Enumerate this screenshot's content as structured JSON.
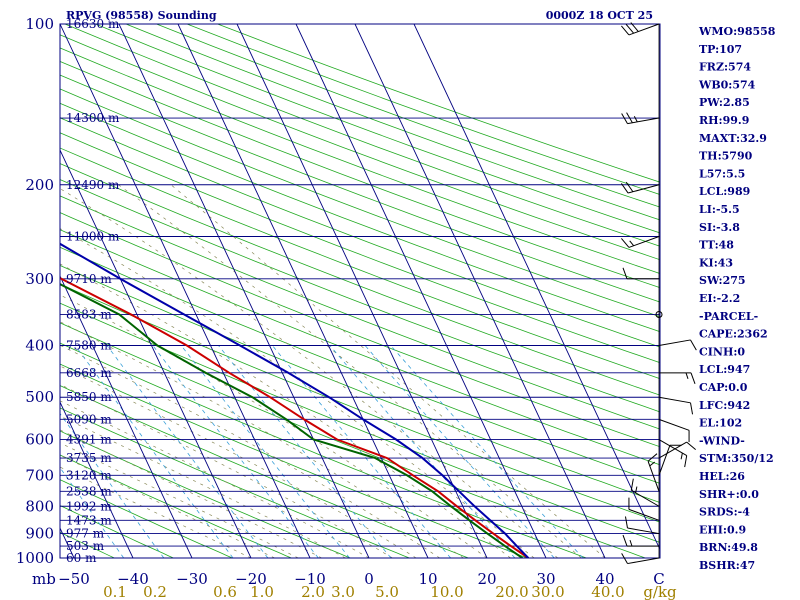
{
  "chart_data": {
    "type": "skew-t",
    "title": "RPVG (98558) Sounding",
    "time": "0000Z 18 OCT 25",
    "y_unit": "mb",
    "x_unit": "C",
    "mixing_unit": "g/kg",
    "pressure_ticks": [
      100,
      200,
      300,
      400,
      500,
      600,
      700,
      800,
      900,
      1000
    ],
    "temp_ticks": [
      -50,
      -40,
      -30,
      -20,
      -10,
      0,
      10,
      20,
      30,
      40
    ],
    "temp_tick_labels": [
      "−50",
      "−40",
      "−30",
      "−20",
      "−10",
      "0",
      "10",
      "20",
      "30",
      "40"
    ],
    "mixing_ratio_labels": [
      "0.1",
      "0.2",
      "0.6",
      "1.0",
      "2.0",
      "3.0",
      "5.0",
      "10.0",
      "20.0",
      "30.0",
      "40.0"
    ],
    "height_levels": [
      {
        "p": 100,
        "label": "16630 m"
      },
      {
        "p": 150,
        "label": "14300 m"
      },
      {
        "p": 200,
        "label": "12490 m"
      },
      {
        "p": 250,
        "label": "11000 m"
      },
      {
        "p": 300,
        "label": "9710 m"
      },
      {
        "p": 350,
        "label": "8583 m"
      },
      {
        "p": 400,
        "label": "7580 m"
      },
      {
        "p": 450,
        "label": "6668 m"
      },
      {
        "p": 500,
        "label": "5850 m"
      },
      {
        "p": 550,
        "label": "5090 m"
      },
      {
        "p": 600,
        "label": "4391 m"
      },
      {
        "p": 650,
        "label": "3735 m"
      },
      {
        "p": 700,
        "label": "3120 m"
      },
      {
        "p": 750,
        "label": "2538 m"
      },
      {
        "p": 800,
        "label": "1992 m"
      },
      {
        "p": 850,
        "label": "1473 m"
      },
      {
        "p": 900,
        "label": "977 m"
      },
      {
        "p": 950,
        "label": "503 m"
      },
      {
        "p": 1000,
        "label": "60 m"
      }
    ],
    "series": [
      {
        "name": "temperature",
        "color": "#cc0000",
        "points": [
          [
            100,
            -77
          ],
          [
            108,
            -82
          ],
          [
            150,
            -66
          ],
          [
            200,
            -52
          ],
          [
            250,
            -40
          ],
          [
            300,
            -30
          ],
          [
            350,
            -21
          ],
          [
            400,
            -14
          ],
          [
            450,
            -9
          ],
          [
            500,
            -4
          ],
          [
            550,
            0
          ],
          [
            600,
            4
          ],
          [
            650,
            11
          ],
          [
            700,
            14
          ],
          [
            750,
            17
          ],
          [
            800,
            19
          ],
          [
            850,
            21
          ],
          [
            900,
            23
          ],
          [
            950,
            25
          ],
          [
            1000,
            27
          ]
        ]
      },
      {
        "name": "dewpoint",
        "color": "#006400",
        "points": [
          [
            100,
            -77
          ],
          [
            108,
            -85
          ],
          [
            150,
            -70
          ],
          [
            200,
            -54
          ],
          [
            250,
            -41
          ],
          [
            300,
            -32
          ],
          [
            350,
            -23
          ],
          [
            400,
            -19
          ],
          [
            450,
            -13
          ],
          [
            500,
            -7
          ],
          [
            550,
            -3
          ],
          [
            600,
            0
          ],
          [
            650,
            9
          ],
          [
            700,
            13
          ],
          [
            750,
            16
          ],
          [
            800,
            18
          ],
          [
            850,
            20
          ],
          [
            900,
            22
          ],
          [
            950,
            24
          ],
          [
            1000,
            26
          ]
        ]
      },
      {
        "name": "parcel",
        "color": "#0000aa",
        "points": [
          [
            125,
            -58
          ],
          [
            150,
            -52
          ],
          [
            200,
            -40
          ],
          [
            250,
            -29
          ],
          [
            300,
            -20
          ],
          [
            350,
            -12
          ],
          [
            400,
            -5
          ],
          [
            450,
            1
          ],
          [
            500,
            6
          ],
          [
            550,
            10
          ],
          [
            600,
            14
          ],
          [
            650,
            17
          ],
          [
            700,
            19
          ],
          [
            800,
            22
          ],
          [
            900,
            25
          ],
          [
            950,
            26
          ],
          [
            1000,
            27
          ]
        ]
      }
    ],
    "indices": [
      "WMO:98558",
      "TP:107",
      "FRZ:574",
      "WB0:574",
      "PW:2.85",
      "RH:99.9",
      "MAXT:32.9",
      "TH:5790",
      "L57:5.5",
      "LCL:989",
      "LI:-5.5",
      "SI:-3.8",
      "TT:48",
      "KI:43",
      "SW:275",
      "EI:-2.2",
      "-PARCEL-",
      "CAPE:2362",
      "CINH:0",
      "LCL:947",
      "CAP:0.0",
      "LFC:942",
      "EL:102",
      "-WIND-",
      "STM:350/12",
      "HEL:26",
      "SHR+:0.0",
      "SRDS:-4",
      "EHI:0.9",
      "BRN:49.8",
      "BSHR:47"
    ],
    "wind_barbs": [
      {
        "p": 100,
        "dir": 250,
        "spd": 30
      },
      {
        "p": 150,
        "dir": 260,
        "spd": 25
      },
      {
        "p": 200,
        "dir": 255,
        "spd": 20
      },
      {
        "p": 250,
        "dir": 250,
        "spd": 15
      },
      {
        "p": 300,
        "dir": 270,
        "spd": 10
      },
      {
        "p": 350,
        "dir": 0,
        "spd": 0
      },
      {
        "p": 400,
        "dir": 80,
        "spd": 10
      },
      {
        "p": 450,
        "dir": 90,
        "spd": 15
      },
      {
        "p": 500,
        "dir": 100,
        "spd": 10
      },
      {
        "p": 550,
        "dir": 110,
        "spd": 10
      },
      {
        "p": 600,
        "dir": 120,
        "spd": 15
      },
      {
        "p": 650,
        "dir": 60,
        "spd": 10
      },
      {
        "p": 700,
        "dir": 20,
        "spd": 10
      },
      {
        "p": 750,
        "dir": 340,
        "spd": 15
      },
      {
        "p": 800,
        "dir": 300,
        "spd": 15
      },
      {
        "p": 850,
        "dir": 290,
        "spd": 10
      },
      {
        "p": 900,
        "dir": 280,
        "spd": 10
      },
      {
        "p": 950,
        "dir": 270,
        "spd": 15
      },
      {
        "p": 1000,
        "dir": 260,
        "spd": 10
      }
    ]
  }
}
